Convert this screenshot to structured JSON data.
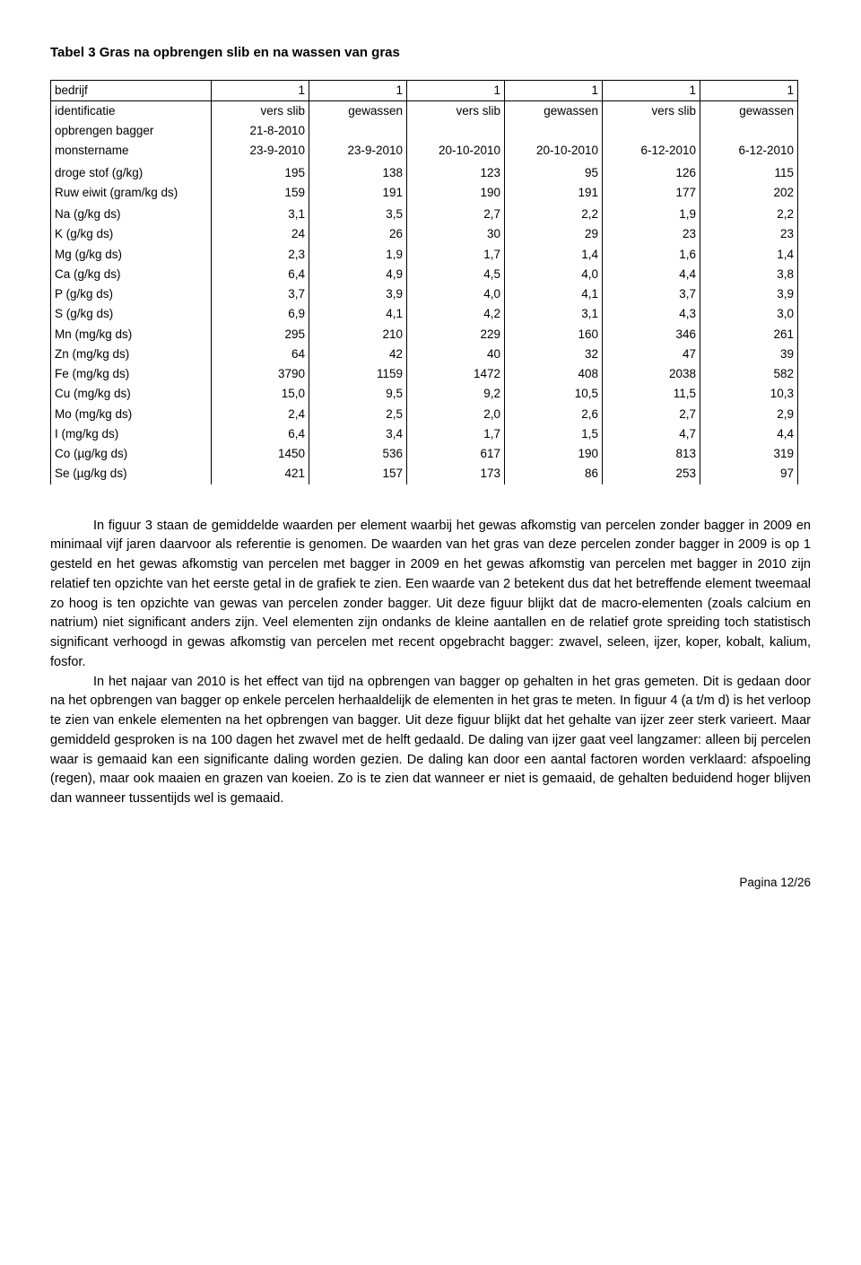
{
  "title": "Tabel 3 Gras na opbrengen slib en na wassen van gras",
  "table": {
    "columns": [
      "1",
      "1",
      "1",
      "1",
      "1",
      "1"
    ],
    "row_labels": [
      "bedrijf",
      "identificatie",
      "opbrengen bagger",
      "monstername",
      "",
      "droge stof (g/kg)",
      "Ruw eiwit (gram/kg ds)",
      "",
      "Na (g/kg ds)",
      "K (g/kg ds)",
      "Mg (g/kg ds)",
      "Ca (g/kg ds)",
      "P (g/kg ds)",
      "S (g/kg ds)",
      "Mn (mg/kg ds)",
      "Zn (mg/kg ds)",
      "Fe (mg/kg ds)",
      "Cu (mg/kg ds)",
      "Mo (mg/kg ds)",
      "I (mg/kg ds)",
      "Co (µg/kg ds)",
      "Se (µg/kg ds)"
    ],
    "rows": [
      [
        "1",
        "1",
        "1",
        "1",
        "1",
        "1"
      ],
      [
        "vers slib",
        "gewassen",
        "vers slib",
        "gewassen",
        "vers slib",
        "gewassen"
      ],
      [
        "21-8-2010",
        "",
        "",
        "",
        "",
        ""
      ],
      [
        "23-9-2010",
        "23-9-2010",
        "20-10-2010",
        "20-10-2010",
        "6-12-2010",
        "6-12-2010"
      ],
      [
        "",
        "",
        "",
        "",
        "",
        ""
      ],
      [
        "195",
        "138",
        "123",
        "95",
        "126",
        "115"
      ],
      [
        "159",
        "191",
        "190",
        "191",
        "177",
        "202"
      ],
      [
        "",
        "",
        "",
        "",
        "",
        ""
      ],
      [
        "3,1",
        "3,5",
        "2,7",
        "2,2",
        "1,9",
        "2,2"
      ],
      [
        "24",
        "26",
        "30",
        "29",
        "23",
        "23"
      ],
      [
        "2,3",
        "1,9",
        "1,7",
        "1,4",
        "1,6",
        "1,4"
      ],
      [
        "6,4",
        "4,9",
        "4,5",
        "4,0",
        "4,4",
        "3,8"
      ],
      [
        "3,7",
        "3,9",
        "4,0",
        "4,1",
        "3,7",
        "3,9"
      ],
      [
        "6,9",
        "4,1",
        "4,2",
        "3,1",
        "4,3",
        "3,0"
      ],
      [
        "295",
        "210",
        "229",
        "160",
        "346",
        "261"
      ],
      [
        "64",
        "42",
        "40",
        "32",
        "47",
        "39"
      ],
      [
        "3790",
        "1159",
        "1472",
        "408",
        "2038",
        "582"
      ],
      [
        "15,0",
        "9,5",
        "9,2",
        "10,5",
        "11,5",
        "10,3"
      ],
      [
        "2,4",
        "2,5",
        "2,0",
        "2,6",
        "2,7",
        "2,9"
      ],
      [
        "6,4",
        "3,4",
        "1,7",
        "1,5",
        "4,7",
        "4,4"
      ],
      [
        "1450",
        "536",
        "617",
        "190",
        "813",
        "319"
      ],
      [
        "421",
        "157",
        "173",
        "86",
        "253",
        "97"
      ]
    ]
  },
  "para1": "In figuur 3 staan de gemiddelde waarden per element waarbij het gewas afkomstig van percelen zonder bagger in 2009 en minimaal vijf jaren daarvoor als referentie is genomen. De waarden van het gras van deze percelen zonder bagger in 2009 is op 1 gesteld en het gewas afkomstig van percelen met bagger in 2009 en het gewas afkomstig van percelen met bagger in 2010 zijn relatief ten opzichte van het eerste getal in de grafiek te zien. Een waarde van 2 betekent dus dat het betreffende element tweemaal zo hoog is ten opzichte van gewas van percelen zonder bagger. Uit deze figuur blijkt dat de macro-elementen (zoals calcium en natrium) niet significant anders zijn. Veel elementen zijn ondanks de kleine aantallen en de relatief grote spreiding toch statistisch significant verhoogd in gewas afkomstig van percelen met recent opgebracht bagger: zwavel, seleen, ijzer, koper, kobalt, kalium, fosfor.",
  "para2": "In het najaar van 2010 is het effect van tijd na opbrengen van bagger op gehalten in het gras gemeten. Dit is gedaan door na het opbrengen van bagger op enkele percelen herhaaldelijk de elementen in het gras te meten. In figuur 4 (a t/m d) is het verloop te zien van enkele elementen na het opbrengen van bagger. Uit deze figuur blijkt dat het gehalte van ijzer zeer sterk varieert. Maar gemiddeld gesproken is na 100 dagen het zwavel met de helft gedaald. De daling van ijzer gaat veel langzamer: alleen bij percelen waar is gemaaid kan een significante daling worden gezien. De daling kan door een aantal factoren worden verklaard: afspoeling (regen), maar ook maaien en grazen van koeien. Zo is te zien dat wanneer er niet is gemaaid, de gehalten beduidend hoger blijven dan wanneer tussentijds wel is gemaaid.",
  "pageno": "Pagina 12/26"
}
